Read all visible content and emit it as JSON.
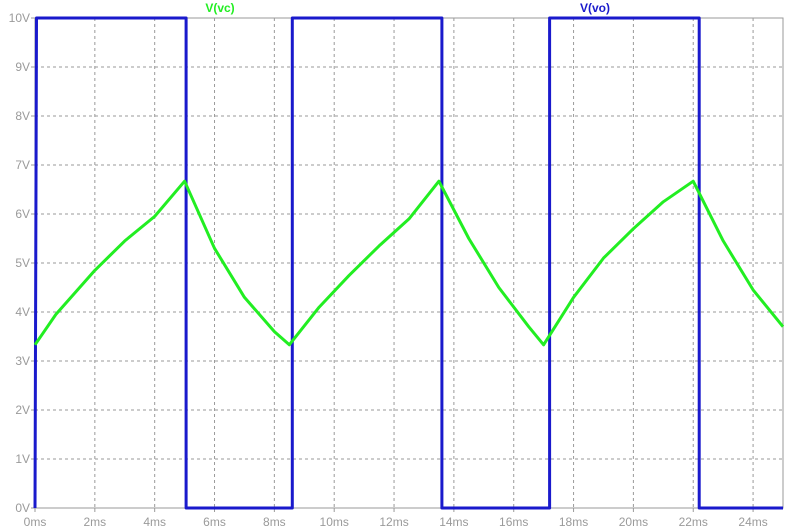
{
  "chart_data": {
    "type": "line",
    "title": "",
    "xlabel": "",
    "ylabel": "",
    "xlim": [
      0,
      25
    ],
    "ylim": [
      0,
      10
    ],
    "grid": true,
    "grid_style": "dashed",
    "legend_placement": "top (labels above plot)",
    "x_ticks": [
      0,
      2,
      4,
      6,
      8,
      10,
      12,
      14,
      16,
      18,
      20,
      22,
      24
    ],
    "x_tick_labels": [
      "0ms",
      "2ms",
      "4ms",
      "6ms",
      "8ms",
      "10ms",
      "12ms",
      "14ms",
      "16ms",
      "18ms",
      "20ms",
      "22ms",
      "24ms"
    ],
    "y_ticks": [
      0,
      1,
      2,
      3,
      4,
      5,
      6,
      7,
      8,
      9,
      10
    ],
    "y_tick_labels": [
      "0V",
      "1V",
      "2V",
      "3V",
      "4V",
      "5V",
      "6V",
      "7V",
      "8V",
      "9V",
      "10V"
    ],
    "series": [
      {
        "name": "V(vc)",
        "color": "#22ee22",
        "x": [
          0,
          0.7,
          2,
          3,
          4,
          5,
          6,
          7,
          8,
          8.5,
          9.5,
          10.5,
          11.5,
          12.5,
          13.5,
          14.5,
          15.5,
          16.5,
          17,
          18,
          19,
          20,
          21,
          22,
          23,
          24,
          25
        ],
        "y": [
          3.33,
          3.95,
          4.85,
          5.45,
          5.95,
          6.67,
          5.3,
          4.3,
          3.6,
          3.33,
          4.1,
          4.75,
          5.35,
          5.9,
          6.67,
          5.5,
          4.5,
          3.7,
          3.33,
          4.3,
          5.1,
          5.7,
          6.25,
          6.67,
          5.45,
          4.45,
          3.7
        ]
      },
      {
        "name": "V(vo)",
        "color": "#1a1acc",
        "x": [
          0,
          0.05,
          5.05,
          5.05,
          8.6,
          8.6,
          13.6,
          13.6,
          17.2,
          17.2,
          22.2,
          22.2,
          25
        ],
        "y": [
          0,
          10,
          10,
          0,
          0,
          10,
          10,
          0,
          0,
          10,
          10,
          0,
          0
        ]
      }
    ]
  }
}
